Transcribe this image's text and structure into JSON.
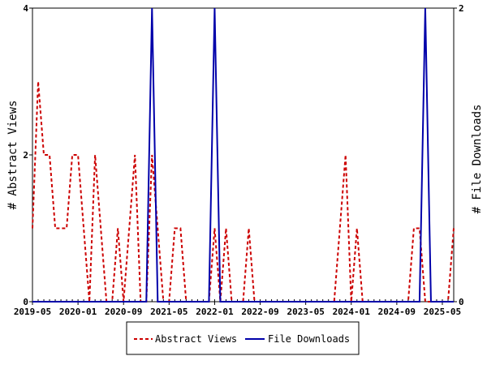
{
  "chart_data": {
    "type": "line",
    "title": "",
    "x_axis": {
      "type": "date",
      "range": [
        "2019-05",
        "2025-07"
      ],
      "tick_labels": [
        "2019-05",
        "2020-01",
        "2020-09",
        "2021-05",
        "2022-01",
        "2022-09",
        "2023-05",
        "2024-01",
        "2024-09",
        "2025-05"
      ]
    },
    "y_left": {
      "label": "# Abstract Views",
      "range": [
        0,
        4
      ],
      "tick_labels": [
        "0",
        "2",
        "4"
      ]
    },
    "y_right": {
      "label": "# File Downloads",
      "range": [
        0,
        2
      ],
      "tick_labels": [
        "0",
        "2"
      ]
    },
    "grid": false,
    "legend": {
      "placement": "bottom-center"
    },
    "x": [
      "2019-05",
      "2019-06",
      "2019-07",
      "2019-08",
      "2019-09",
      "2019-10",
      "2019-11",
      "2019-12",
      "2020-01",
      "2020-02",
      "2020-03",
      "2020-04",
      "2020-05",
      "2020-06",
      "2020-07",
      "2020-08",
      "2020-09",
      "2020-10",
      "2020-11",
      "2020-12",
      "2021-01",
      "2021-02",
      "2021-03",
      "2021-04",
      "2021-05",
      "2021-06",
      "2021-07",
      "2021-08",
      "2021-09",
      "2021-10",
      "2021-11",
      "2021-12",
      "2022-01",
      "2022-02",
      "2022-03",
      "2022-04",
      "2022-05",
      "2022-06",
      "2022-07",
      "2022-08",
      "2022-09",
      "2022-10",
      "2022-11",
      "2022-12",
      "2023-01",
      "2023-02",
      "2023-03",
      "2023-04",
      "2023-05",
      "2023-06",
      "2023-07",
      "2023-08",
      "2023-09",
      "2023-10",
      "2023-11",
      "2023-12",
      "2024-01",
      "2024-02",
      "2024-03",
      "2024-04",
      "2024-05",
      "2024-06",
      "2024-07",
      "2024-08",
      "2024-09",
      "2024-10",
      "2024-11",
      "2024-12",
      "2025-01",
      "2025-02",
      "2025-03",
      "2025-04",
      "2025-05",
      "2025-06",
      "2025-07"
    ],
    "series": [
      {
        "name": "Abstract Views",
        "axis": "left",
        "color": "#cc0000",
        "dash": "dashed",
        "values": [
          1,
          3,
          2,
          2,
          1,
          1,
          1,
          2,
          2,
          1,
          0,
          2,
          1,
          0,
          0,
          1,
          0,
          1,
          2,
          0,
          0,
          2,
          1,
          0,
          0,
          1,
          1,
          0,
          0,
          0,
          0,
          0,
          1,
          0,
          1,
          0,
          0,
          0,
          1,
          0,
          0,
          0,
          0,
          0,
          0,
          0,
          0,
          0,
          0,
          0,
          0,
          0,
          0,
          0,
          1,
          2,
          0,
          1,
          0,
          0,
          0,
          0,
          0,
          0,
          0,
          0,
          0,
          1,
          1,
          0,
          0,
          0,
          0,
          0,
          1
        ]
      },
      {
        "name": "File Downloads",
        "axis": "right",
        "color": "#0000aa",
        "dash": "solid",
        "values": [
          0,
          0,
          0,
          0,
          0,
          0,
          0,
          0,
          0,
          0,
          0,
          0,
          0,
          0,
          0,
          0,
          0,
          0,
          0,
          0,
          0,
          2,
          0,
          0,
          0,
          0,
          0,
          0,
          0,
          0,
          0,
          0,
          2,
          0,
          0,
          0,
          0,
          0,
          0,
          0,
          0,
          0,
          0,
          0,
          0,
          0,
          0,
          0,
          0,
          0,
          0,
          0,
          0,
          0,
          0,
          0,
          0,
          0,
          0,
          0,
          0,
          0,
          0,
          0,
          0,
          0,
          0,
          0,
          0,
          2,
          0,
          0,
          0,
          0,
          0
        ]
      }
    ]
  }
}
